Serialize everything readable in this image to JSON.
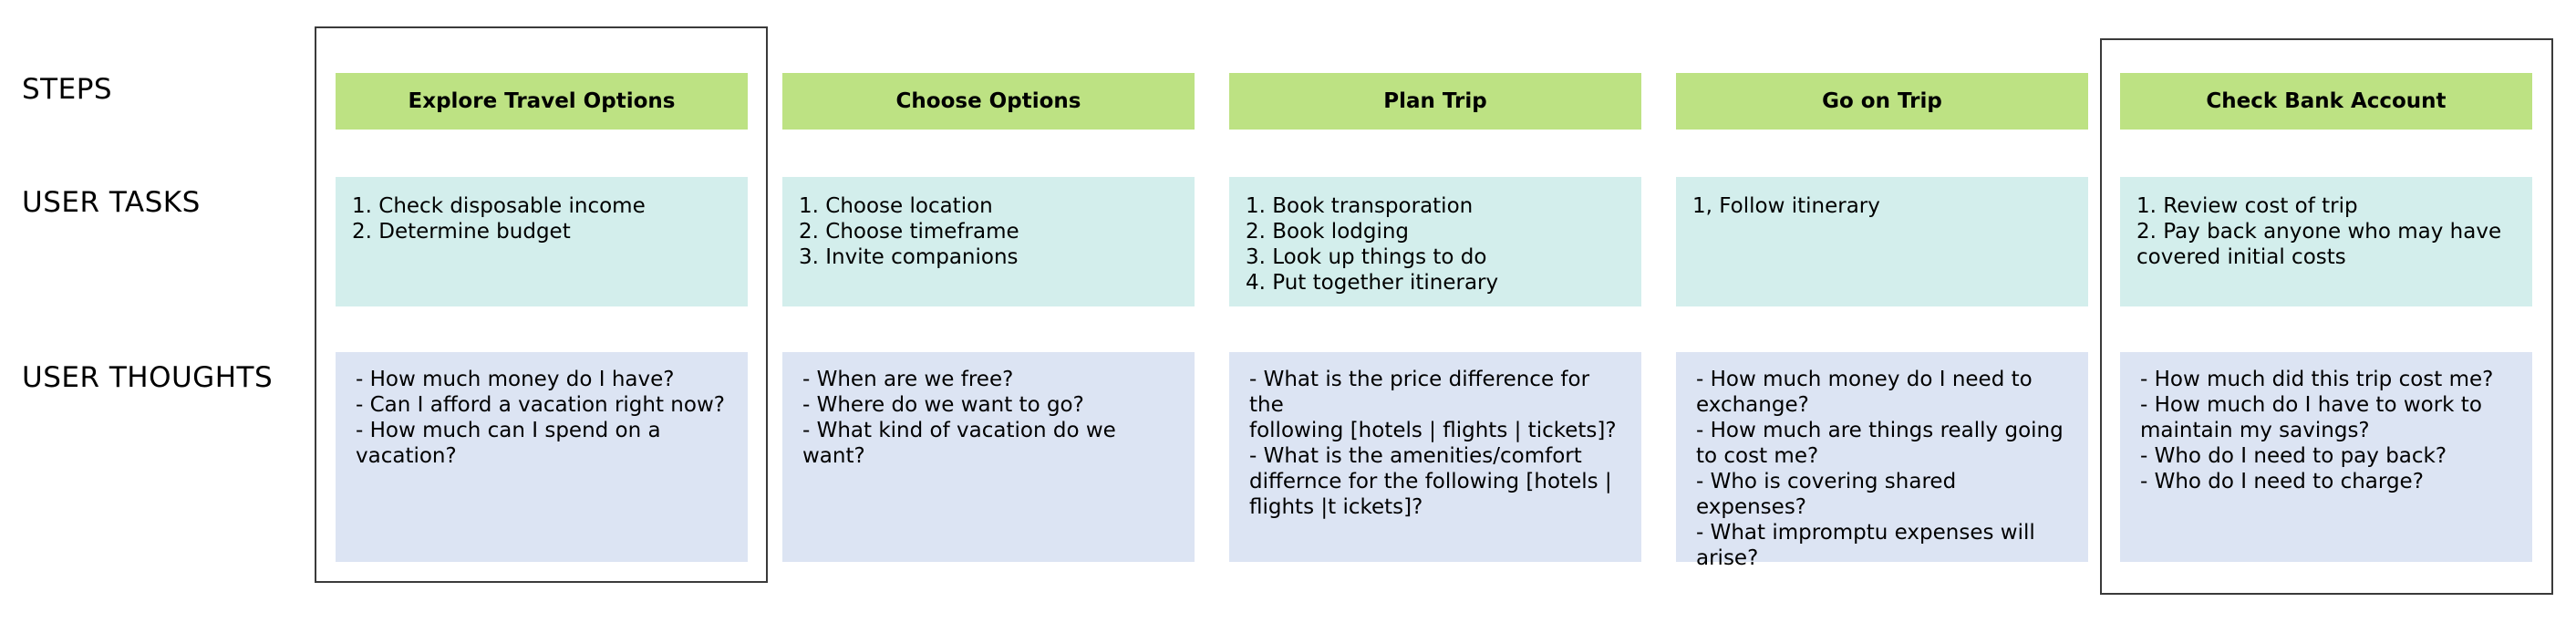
{
  "row_labels": {
    "steps": "STEPS",
    "user_tasks": "USER TASKS",
    "user_thoughts": "USER THOUGHTS"
  },
  "columns": [
    {
      "step": "Explore Travel Options",
      "tasks": [
        "1. Check disposable income",
        "2. Determine budget"
      ],
      "thoughts": [
        "- How much money do I have?",
        "- Can I afford a vacation right now?",
        "- How much can I spend on a",
        "vacation?"
      ]
    },
    {
      "step": "Choose Options",
      "tasks": [
        "1. Choose location",
        "2. Choose timeframe",
        "3. Invite companions"
      ],
      "thoughts": [
        "- When are we free?",
        "- Where do we want to go?",
        "- What kind of vacation do we want?"
      ]
    },
    {
      "step": "Plan Trip",
      "tasks": [
        "1. Book transporation",
        "2. Book lodging",
        "3. Look up things to do",
        "4. Put together itinerary"
      ],
      "thoughts": [
        "- What is the price difference for the",
        "following [hotels | flights | tickets]?",
        "- What is the amenities/comfort",
        "differnce for the following [hotels |",
        "flights |t ickets]?"
      ]
    },
    {
      "step": "Go on Trip",
      "tasks": [
        "1, Follow itinerary"
      ],
      "thoughts": [
        "- How much money do I need to",
        "exchange?",
        "- How much are things really going",
        "to cost me?",
        "- Who is covering shared expenses?",
        "- What impromptu expenses will",
        "arise?"
      ]
    },
    {
      "step": "Check Bank Account",
      "tasks": [
        "1. Review cost of trip",
        "2. Pay back anyone who may have",
        "covered initial costs"
      ],
      "thoughts": [
        "- How much did this trip cost me?",
        "- How much do I have to work to",
        "maintain my savings?",
        "- Who do I need to pay back?",
        "- Who do I need to charge?"
      ]
    }
  ]
}
